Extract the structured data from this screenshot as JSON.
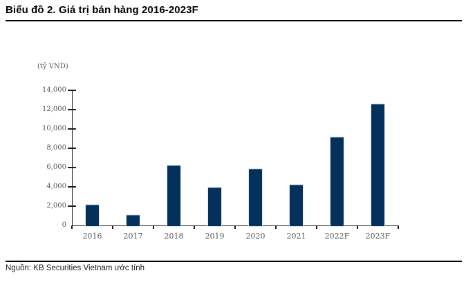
{
  "header": {
    "title": "Biểu đồ 2. Giá trị bán hàng 2016-2023F"
  },
  "footer": {
    "source": "Nguồn: KB Securities Vietnam ước tính"
  },
  "chart_data": {
    "type": "bar",
    "title": "Biểu đồ 2. Giá trị bán hàng 2016-2023F",
    "unit_label": "(tỷ VND)",
    "categories": [
      "2016",
      "2017",
      "2018",
      "2019",
      "2020",
      "2021",
      "2022F",
      "2023F"
    ],
    "values": [
      2150,
      1050,
      6200,
      3900,
      5850,
      4250,
      9150,
      12600
    ],
    "ylabel": "(tỷ VND)",
    "xlabel": "",
    "ylim": [
      0,
      14000
    ],
    "ytick_step": 2000,
    "ytick_labels": [
      "0",
      "2,000",
      "4,000",
      "6,000",
      "8,000",
      "10,000",
      "12,000",
      "14,000"
    ],
    "grid": false,
    "legend_position": "none",
    "bar_color": "#04305c"
  },
  "colors": {
    "bar": "#04305c",
    "axis": "#1a1a1a",
    "tick_text": "#54565a",
    "rule": "#000000",
    "title_text": "#000000",
    "source_text": "#1d1d1b"
  }
}
